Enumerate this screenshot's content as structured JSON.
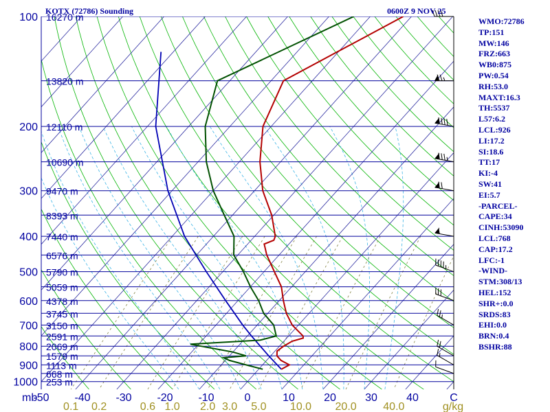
{
  "header": {
    "station": "KOTX (72786) Sounding",
    "time": "0600Z  9 NOV 25"
  },
  "indices": [
    "WMO:72786",
    "TP:151",
    "MW:146",
    "FRZ:663",
    "WB0:875",
    "PW:0.54",
    "RH:53.0",
    "MAXT:16.3",
    "TH:5537",
    "L57:6.2",
    "LCL:926",
    "LI:17.2",
    "SI:18.6",
    "TT:17",
    "KI:-4",
    "SW:41",
    "EI:5.7",
    "-PARCEL-",
    "CAPE:34",
    "CINH:53090",
    "LCL:768",
    "CAP:17.2",
    "LFC:-1",
    "-WIND-",
    "STM:308/13",
    "HEL:152",
    "SHR+:0.0",
    "SRDS:83",
    "EHI:0.0",
    "BRN:0.4",
    "BSHR:88"
  ],
  "colors": {
    "isobar": "#00009c",
    "isotherm": "#2a2aa0",
    "dry_adiabat": "#00b400",
    "moist_adiabat": "#3cb4e6",
    "mixing_ratio": "#808040",
    "temperature": "#b40000",
    "dewpoint": "#005000",
    "parcel": "#0000b4",
    "text_blue": "#0000a0",
    "mixing_label": "#a09020"
  },
  "chart_data": {
    "type": "skew-t",
    "y_unit": "mb",
    "x_unit": "C",
    "mixing_ratio_unit": "g/kg",
    "pressure_levels": [
      {
        "p": 100,
        "label": "100",
        "height": "16270 m"
      },
      {
        "p": 150,
        "label": "",
        "height": "13820 m"
      },
      {
        "p": 200,
        "label": "200",
        "height": "12110 m"
      },
      {
        "p": 250,
        "label": "",
        "height": "10690 m"
      },
      {
        "p": 300,
        "label": "300",
        "height": "9470 m"
      },
      {
        "p": 350,
        "label": "",
        "height": "8393 m"
      },
      {
        "p": 400,
        "label": "400",
        "height": "7440 m"
      },
      {
        "p": 450,
        "label": "",
        "height": "6576 m"
      },
      {
        "p": 500,
        "label": "500",
        "height": "5790 m"
      },
      {
        "p": 550,
        "label": "",
        "height": "5059 m"
      },
      {
        "p": 600,
        "label": "600",
        "height": "4378 m"
      },
      {
        "p": 650,
        "label": "",
        "height": "3745 m"
      },
      {
        "p": 700,
        "label": "700",
        "height": "3150 m"
      },
      {
        "p": 750,
        "label": "",
        "height": "2591 m"
      },
      {
        "p": 800,
        "label": "800",
        "height": "2069 m"
      },
      {
        "p": 850,
        "label": "",
        "height": "1579 m"
      },
      {
        "p": 900,
        "label": "900",
        "height": "1113 m"
      },
      {
        "p": 950,
        "label": "",
        "height": "668 m"
      },
      {
        "p": 1000,
        "label": "1000",
        "height": "253 m"
      }
    ],
    "temperature_ticks": [
      "-50",
      "-40",
      "-30",
      "-20",
      "-10",
      "0",
      "10",
      "20",
      "30",
      "40",
      "C"
    ],
    "mixing_ratio_ticks": [
      {
        "value": 0.1,
        "label": "0.1"
      },
      {
        "value": 0.2,
        "label": "0.2"
      },
      {
        "value": 0.6,
        "label": "0.6"
      },
      {
        "value": 1.0,
        "label": "1.0"
      },
      {
        "value": 2.0,
        "label": "2.0"
      },
      {
        "value": 3.0,
        "label": "3.0"
      },
      {
        "value": 5.0,
        "label": "5.0"
      },
      {
        "value": 10.0,
        "label": "10.0"
      },
      {
        "value": 20.0,
        "label": "20.0"
      },
      {
        "value": 40.0,
        "label": "40.0"
      }
    ],
    "temperature_profile": [
      {
        "p": 925,
        "t": 5.5
      },
      {
        "p": 900,
        "t": 6.5
      },
      {
        "p": 875,
        "t": 3.5
      },
      {
        "p": 850,
        "t": 1.5
      },
      {
        "p": 825,
        "t": 0.5
      },
      {
        "p": 800,
        "t": 1.0
      },
      {
        "p": 775,
        "t": 2.0
      },
      {
        "p": 760,
        "t": 4.0
      },
      {
        "p": 750,
        "t": 3.5
      },
      {
        "p": 700,
        "t": -1.5
      },
      {
        "p": 650,
        "t": -5.5
      },
      {
        "p": 600,
        "t": -9.0
      },
      {
        "p": 550,
        "t": -12.5
      },
      {
        "p": 500,
        "t": -17.5
      },
      {
        "p": 450,
        "t": -23.0
      },
      {
        "p": 420,
        "t": -26.0
      },
      {
        "p": 410,
        "t": -24.5
      },
      {
        "p": 400,
        "t": -25.0
      },
      {
        "p": 350,
        "t": -30.5
      },
      {
        "p": 300,
        "t": -38.0
      },
      {
        "p": 250,
        "t": -45.0
      },
      {
        "p": 200,
        "t": -52.0
      },
      {
        "p": 150,
        "t": -57.0
      },
      {
        "p": 100,
        "t": -42.0
      }
    ],
    "dewpoint_profile": [
      {
        "p": 925,
        "t": 1.0
      },
      {
        "p": 900,
        "t": -4.0
      },
      {
        "p": 875,
        "t": -9.0
      },
      {
        "p": 860,
        "t": -11.0
      },
      {
        "p": 850,
        "t": -6.0
      },
      {
        "p": 830,
        "t": -10.0
      },
      {
        "p": 790,
        "t": -22.0
      },
      {
        "p": 770,
        "t": -6.0
      },
      {
        "p": 750,
        "t": -3.0
      },
      {
        "p": 700,
        "t": -6.0
      },
      {
        "p": 650,
        "t": -11.0
      },
      {
        "p": 600,
        "t": -15.0
      },
      {
        "p": 550,
        "t": -20.0
      },
      {
        "p": 500,
        "t": -25.0
      },
      {
        "p": 450,
        "t": -31.0
      },
      {
        "p": 400,
        "t": -35.0
      },
      {
        "p": 350,
        "t": -42.0
      },
      {
        "p": 300,
        "t": -50.0
      },
      {
        "p": 250,
        "t": -58.0
      },
      {
        "p": 200,
        "t": -66.0
      },
      {
        "p": 150,
        "t": -73.0
      },
      {
        "p": 100,
        "t": -54.0
      }
    ],
    "parcel_profile": [
      {
        "p": 925,
        "t": 5.5
      },
      {
        "p": 850,
        "t": -0.5
      },
      {
        "p": 750,
        "t": -9.0
      },
      {
        "p": 700,
        "t": -13.5
      },
      {
        "p": 600,
        "t": -23.0
      },
      {
        "p": 500,
        "t": -34.0
      },
      {
        "p": 400,
        "t": -47.0
      },
      {
        "p": 300,
        "t": -61.0
      },
      {
        "p": 200,
        "t": -78.0
      },
      {
        "p": 125,
        "t": -93.0
      }
    ],
    "wind_profile": [
      {
        "p": 950,
        "dir": 290,
        "spd": 10
      },
      {
        "p": 900,
        "dir": 300,
        "spd": 15
      },
      {
        "p": 850,
        "dir": 300,
        "spd": 20
      },
      {
        "p": 700,
        "dir": 300,
        "spd": 25
      },
      {
        "p": 600,
        "dir": 290,
        "spd": 30
      },
      {
        "p": 500,
        "dir": 290,
        "spd": 45
      },
      {
        "p": 400,
        "dir": 280,
        "spd": 55
      },
      {
        "p": 300,
        "dir": 280,
        "spd": 70
      },
      {
        "p": 250,
        "dir": 280,
        "spd": 85
      },
      {
        "p": 200,
        "dir": 280,
        "spd": 90
      },
      {
        "p": 150,
        "dir": 270,
        "spd": 75
      },
      {
        "p": 100,
        "dir": 270,
        "spd": 40
      }
    ]
  }
}
